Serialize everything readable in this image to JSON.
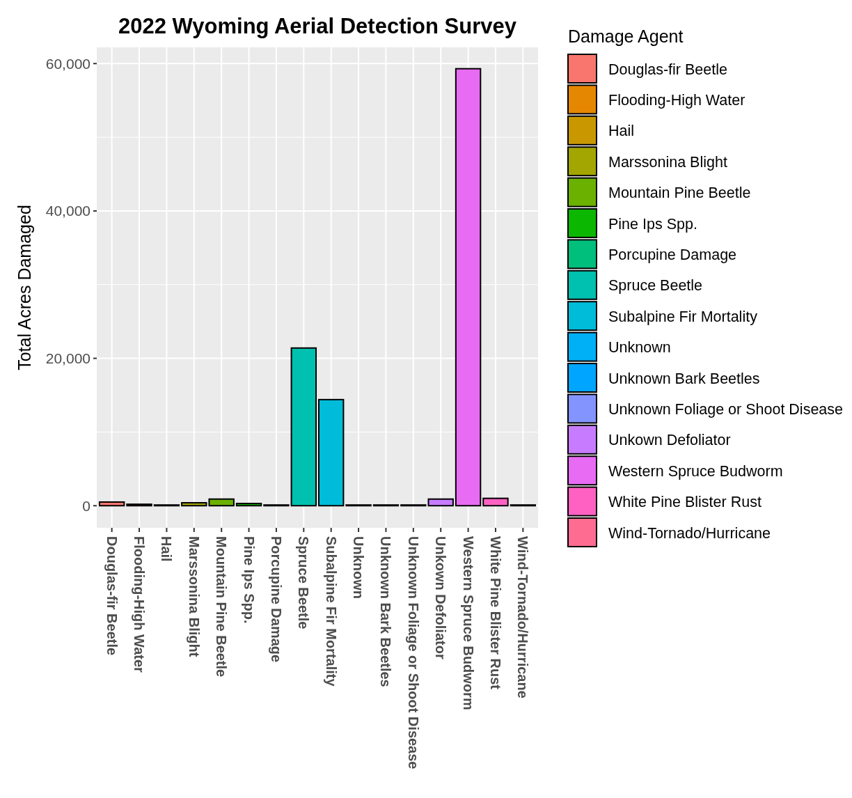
{
  "chart_data": {
    "type": "bar",
    "title": "2022 Wyoming Aerial Detection Survey",
    "ylabel": "Total Acres Damaged",
    "legend_title": "Damage Agent",
    "stacked": true,
    "categories": [
      "Douglas-fir Beetle",
      "Flooding-High Water",
      "Hail",
      "Marssonina Blight",
      "Mountain Pine Beetle",
      "Pine Ips Spp.",
      "Porcupine Damage",
      "Spruce Beetle",
      "Subalpine Fir Mortality",
      "Unknown",
      "Unknown Bark Beetles",
      "Unknown Foliage or Shoot Disease",
      "Unkown Defoliator",
      "Western Spruce Budworm",
      "White Pine Blister Rust",
      "Wind-Tornado/Hurricane"
    ],
    "series": [
      {
        "name": "Douglas-fir Beetle",
        "color": "#F8766D",
        "values": [
          500,
          null,
          null,
          null,
          null,
          null,
          null,
          null,
          null,
          null,
          null,
          null,
          null,
          null,
          null,
          null
        ]
      },
      {
        "name": "Flooding-High Water",
        "color": "#E58700",
        "values": [
          null,
          200,
          null,
          null,
          null,
          null,
          null,
          null,
          null,
          null,
          null,
          null,
          null,
          null,
          null,
          null
        ]
      },
      {
        "name": "Hail",
        "color": "#C99800",
        "values": [
          null,
          null,
          100,
          null,
          null,
          null,
          null,
          null,
          null,
          null,
          null,
          null,
          null,
          null,
          null,
          null
        ]
      },
      {
        "name": "Marssonina Blight",
        "color": "#A3A500",
        "values": [
          null,
          null,
          null,
          400,
          null,
          null,
          null,
          null,
          null,
          null,
          null,
          null,
          null,
          null,
          null,
          null
        ]
      },
      {
        "name": "Mountain Pine Beetle",
        "color": "#6BB100",
        "values": [
          null,
          null,
          null,
          null,
          900,
          null,
          null,
          null,
          null,
          null,
          null,
          null,
          null,
          null,
          null,
          null
        ]
      },
      {
        "name": "Pine Ips Spp.",
        "color": "#0CB702",
        "values": [
          null,
          null,
          null,
          null,
          null,
          300,
          null,
          null,
          null,
          null,
          null,
          null,
          null,
          null,
          null,
          null
        ]
      },
      {
        "name": "Porcupine Damage",
        "color": "#00BF7D",
        "values": [
          null,
          null,
          null,
          null,
          null,
          null,
          100,
          null,
          null,
          null,
          null,
          null,
          null,
          null,
          null,
          null
        ]
      },
      {
        "name": "Spruce Beetle",
        "color": "#00C0AF",
        "values": [
          null,
          null,
          null,
          null,
          null,
          null,
          null,
          21400,
          null,
          null,
          null,
          null,
          null,
          null,
          null,
          null
        ]
      },
      {
        "name": "Subalpine Fir Mortality",
        "color": "#00BCD8",
        "values": [
          null,
          null,
          null,
          null,
          null,
          null,
          null,
          null,
          14400,
          null,
          null,
          null,
          null,
          null,
          null,
          null
        ]
      },
      {
        "name": "Unknown",
        "color": "#00B0F6",
        "values": [
          null,
          null,
          null,
          null,
          null,
          null,
          null,
          null,
          null,
          100,
          null,
          null,
          null,
          null,
          null,
          null
        ]
      },
      {
        "name": "Unknown Bark Beetles",
        "color": "#00A5FF",
        "values": [
          null,
          null,
          null,
          null,
          null,
          null,
          null,
          null,
          null,
          null,
          100,
          null,
          null,
          null,
          null,
          null
        ]
      },
      {
        "name": "Unknown Foliage or Shoot Disease",
        "color": "#8494FF",
        "values": [
          null,
          null,
          null,
          null,
          null,
          null,
          null,
          null,
          null,
          null,
          null,
          100,
          null,
          null,
          null,
          null
        ]
      },
      {
        "name": "Unkown Defoliator",
        "color": "#C77CFF",
        "values": [
          null,
          null,
          null,
          null,
          null,
          null,
          null,
          null,
          null,
          null,
          null,
          null,
          900,
          null,
          null,
          null
        ]
      },
      {
        "name": "Western Spruce Budworm",
        "color": "#E76BF3",
        "values": [
          null,
          null,
          null,
          null,
          null,
          null,
          null,
          null,
          null,
          null,
          null,
          null,
          null,
          59300,
          null,
          null
        ]
      },
      {
        "name": "White Pine Blister Rust",
        "color": "#FF61C3",
        "values": [
          null,
          null,
          null,
          null,
          null,
          null,
          null,
          null,
          null,
          null,
          null,
          null,
          null,
          null,
          1000,
          null
        ]
      },
      {
        "name": "Wind-Tornado/Hurricane",
        "color": "#FF6C91",
        "values": [
          null,
          null,
          null,
          null,
          null,
          null,
          null,
          null,
          null,
          null,
          null,
          null,
          null,
          null,
          null,
          100
        ]
      }
    ],
    "ylim": [
      -3000,
      62200
    ],
    "yticks": [
      {
        "value": 0,
        "label": "0"
      },
      {
        "value": 20000,
        "label": "20,000"
      },
      {
        "value": 40000,
        "label": "40,000"
      },
      {
        "value": 60000,
        "label": "60,000"
      }
    ],
    "grid": true,
    "legend": "right"
  }
}
